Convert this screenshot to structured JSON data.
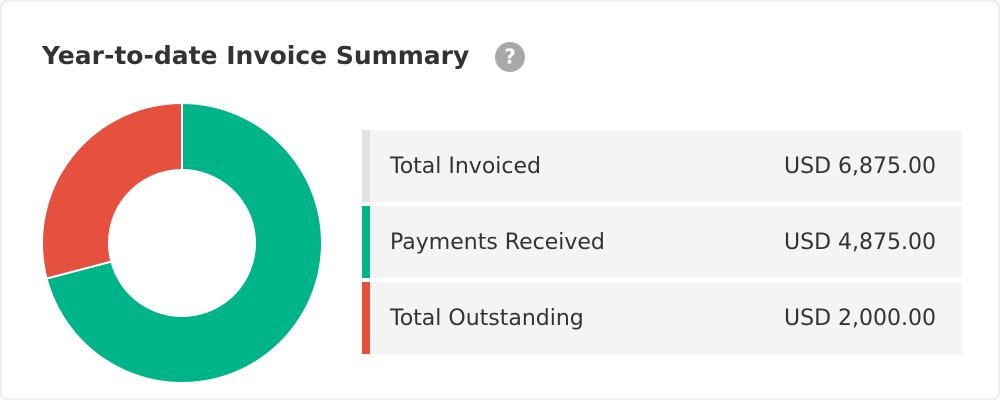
{
  "chart_data": {
    "type": "donut",
    "title": "Year-to-date Invoice Summary",
    "categories": [
      "Payments Received",
      "Total Outstanding"
    ],
    "values": [
      4875,
      2000
    ],
    "value_labels": [
      "USD 4,875.00",
      "USD 2,000.00"
    ],
    "colors": [
      "#00b48a",
      "#e5503f"
    ]
  },
  "summary": {
    "label": "Total Invoiced",
    "value_label": "USD 6,875.00"
  }
}
